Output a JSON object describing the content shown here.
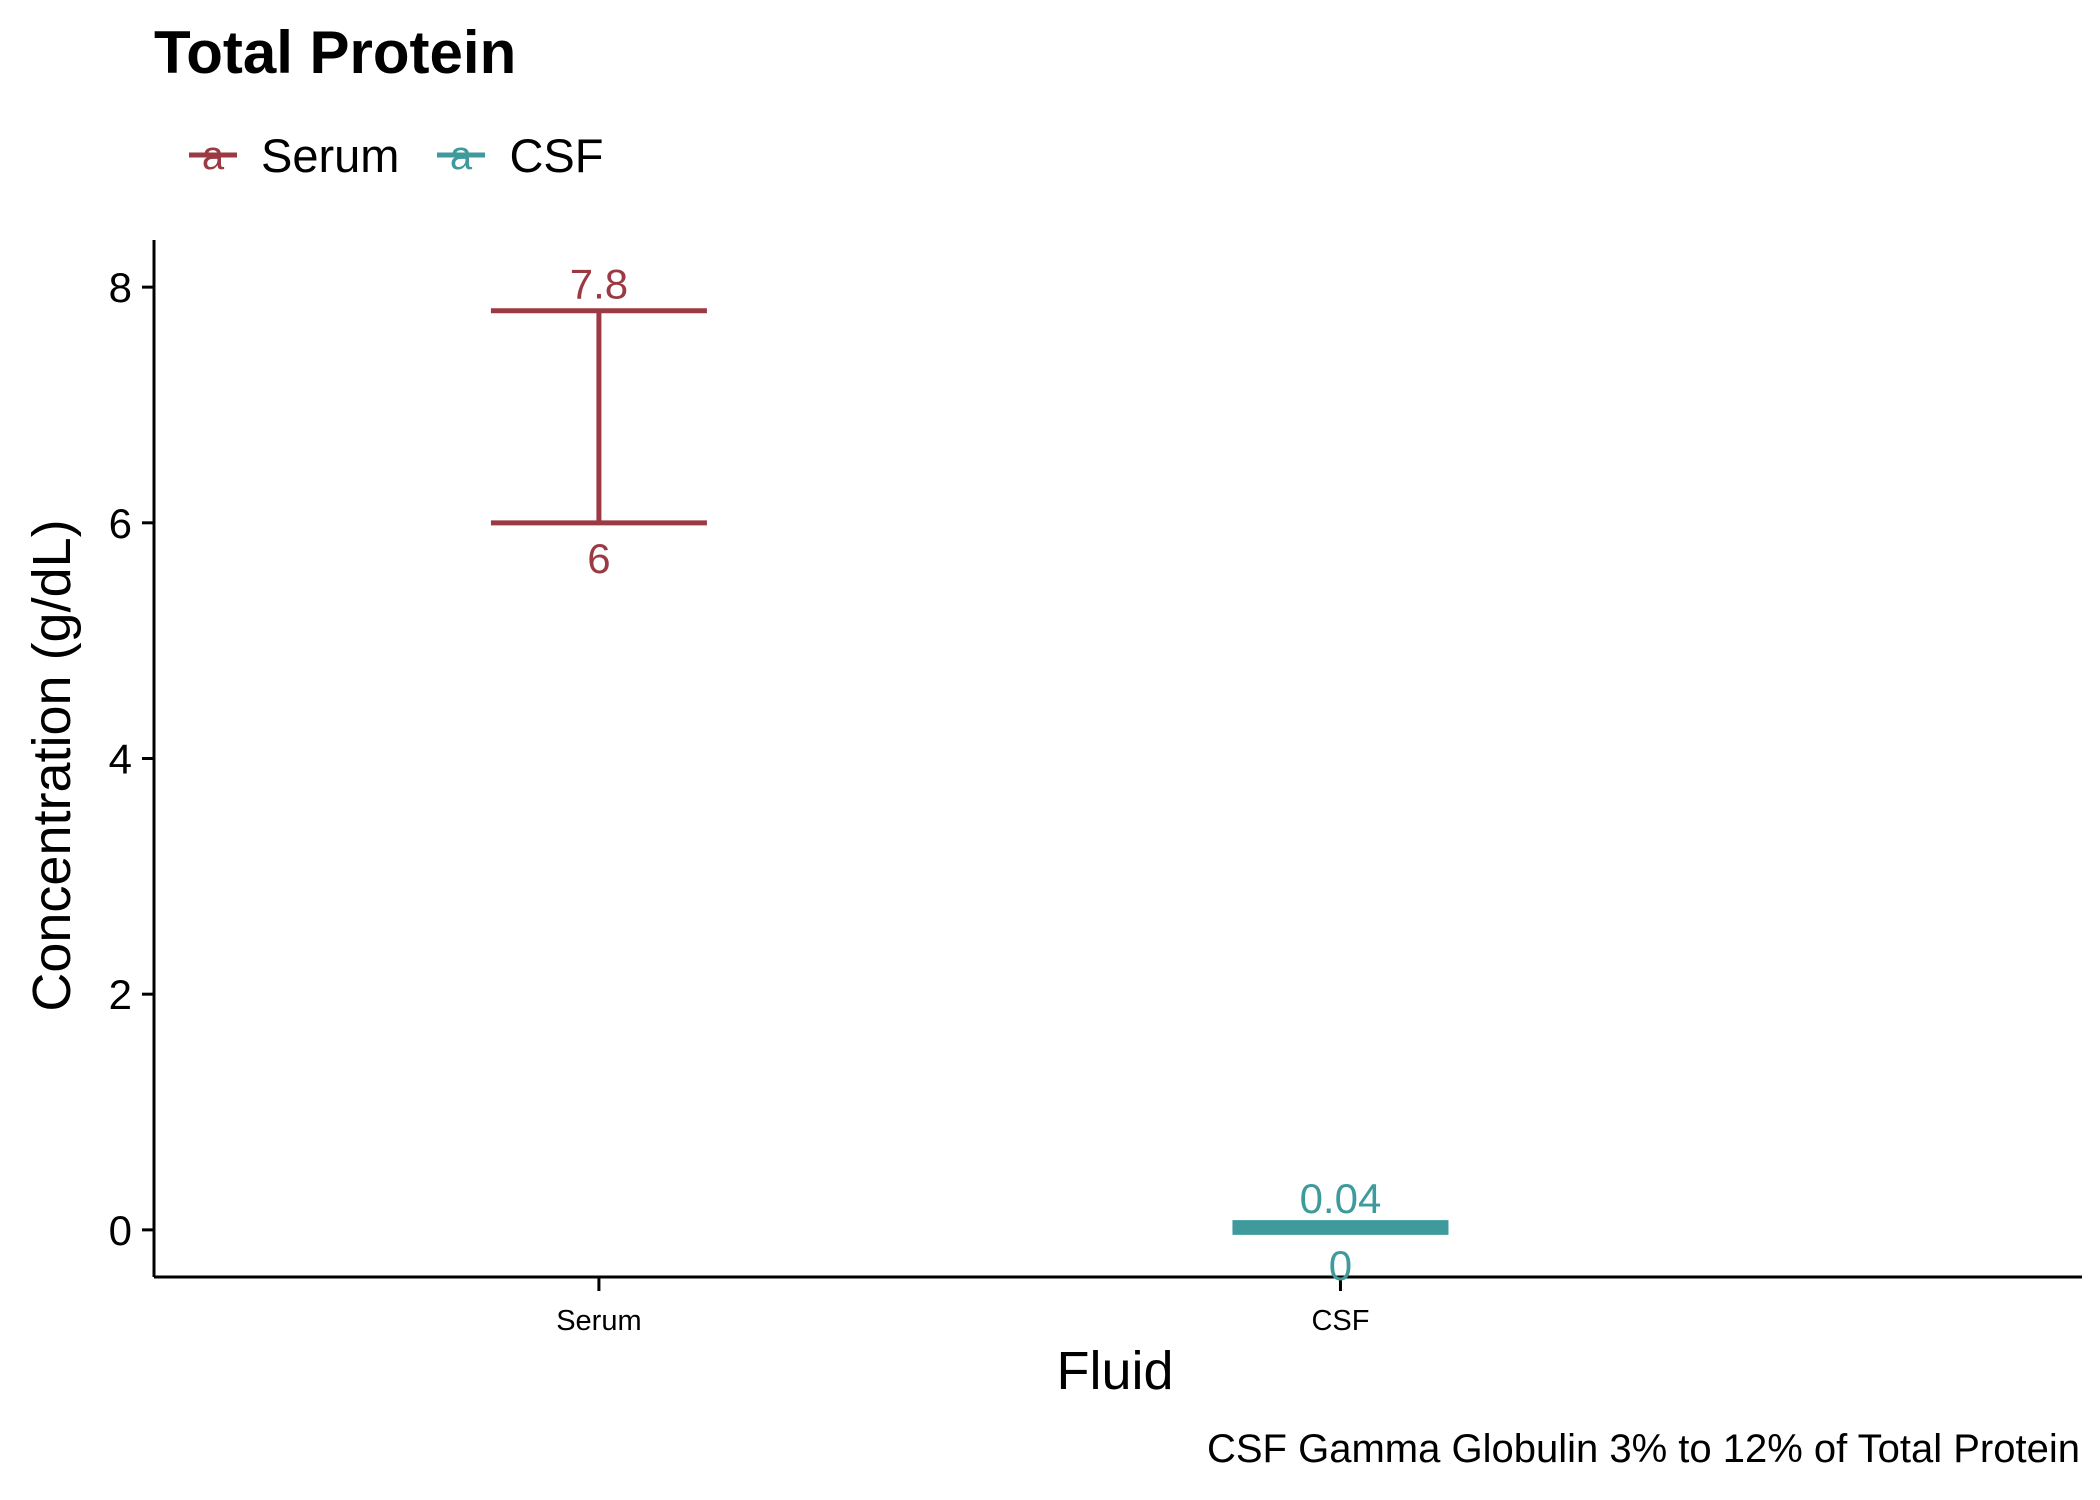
{
  "chart_data": {
    "type": "errorbar",
    "title": "Total Protein",
    "caption": "CSF Gamma Globulin 3% to 12% of Total Protein",
    "xlabel": "Fluid",
    "ylabel": "Concentration (g/dL)",
    "categories": [
      "Serum",
      "CSF"
    ],
    "ylim": [
      -0.4,
      8.4
    ],
    "yticks": [
      0,
      2,
      4,
      6,
      8
    ],
    "grid": false,
    "legend_position": "top-left",
    "series": [
      {
        "name": "Serum",
        "category": "Serum",
        "low": 6,
        "high": 7.8,
        "low_label": "6",
        "high_label": "7.8",
        "color": "#9b3a42"
      },
      {
        "name": "CSF",
        "category": "CSF",
        "low": 0,
        "high": 0.04,
        "low_label": "0",
        "high_label": "0.04",
        "color": "#3f9a9c"
      }
    ]
  }
}
